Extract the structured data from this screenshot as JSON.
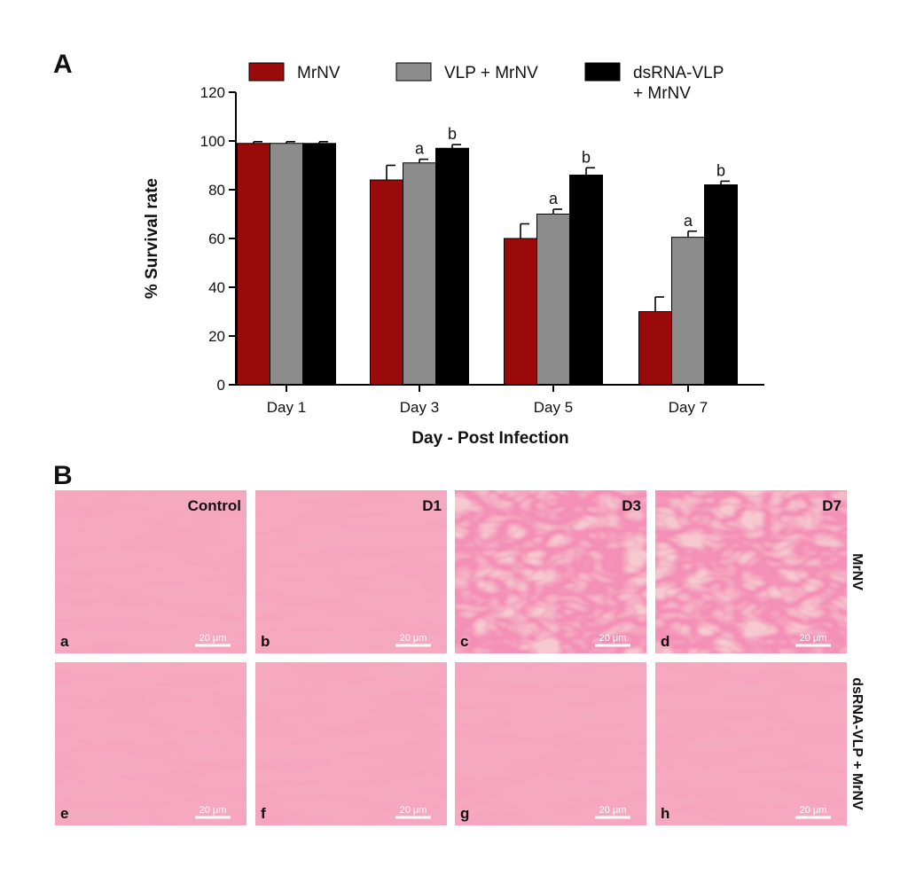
{
  "panel_a_label": "A",
  "panel_b_label": "B",
  "chart_data": {
    "type": "bar",
    "title": "",
    "xlabel": "Day - Post Infection",
    "ylabel": "% Survival rate",
    "categories": [
      "Day 1",
      "Day 3",
      "Day 5",
      "Day 7"
    ],
    "ylim": [
      0,
      120
    ],
    "yticks": [
      0,
      20,
      40,
      60,
      80,
      100,
      120
    ],
    "grid": false,
    "legend_position": "top",
    "series": [
      {
        "name": "MrNV",
        "color": "#9b0a0a",
        "values": [
          99,
          84,
          60,
          30
        ],
        "errors": [
          0.7,
          6,
          6,
          6
        ],
        "sig": [
          "",
          "",
          "",
          ""
        ]
      },
      {
        "name": "VLP + MrNV",
        "color": "#8c8c8c",
        "values": [
          99,
          91,
          70,
          60.5
        ],
        "errors": [
          0.7,
          1.5,
          2,
          2.5
        ],
        "sig": [
          "",
          "a",
          "a",
          "a"
        ]
      },
      {
        "name": "dsRNA-VLP + MrNV",
        "legend_lines": [
          "dsRNA-VLP",
          "+ MrNV"
        ],
        "color": "#000000",
        "values": [
          99,
          97,
          86,
          82
        ],
        "errors": [
          0.7,
          1.5,
          3,
          1.5
        ],
        "sig": [
          "",
          "b",
          "b",
          "b"
        ]
      }
    ]
  },
  "micrographs": {
    "scale_bar_label": "20 μm",
    "column_labels": [
      "Control",
      "D1",
      "D3",
      "D7"
    ],
    "row_labels": [
      "MrNV",
      "dsRNA-VLP + MrNV"
    ],
    "panel_letters": [
      "a",
      "b",
      "c",
      "d",
      "e",
      "f",
      "g",
      "h"
    ]
  }
}
